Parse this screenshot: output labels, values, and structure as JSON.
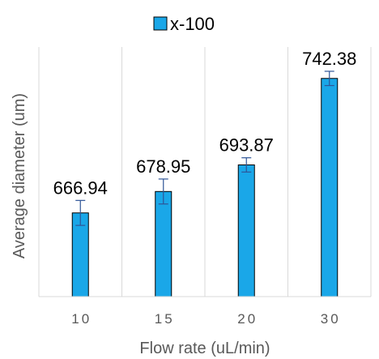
{
  "chart_data": {
    "type": "bar",
    "categories": [
      "10",
      "15",
      "20",
      "30"
    ],
    "series": [
      {
        "name": "x-100",
        "values": [
          666.94,
          678.95,
          693.87,
          742.38
        ],
        "error": [
          7,
          7,
          4,
          4
        ],
        "data_labels": [
          "666.94",
          "678.95",
          "693.87",
          "742.38"
        ]
      }
    ],
    "xlabel": "Flow rate (uL/min)",
    "ylabel": "Average diameter (um)",
    "ylim": [
      620,
      760
    ],
    "grid": "vertical",
    "legend_position": "top",
    "colors": {
      "bar": "#1aa7e8",
      "bar_edge": "#000000",
      "error_bar": "#2f5597",
      "grid": "#d9d9d9"
    }
  }
}
